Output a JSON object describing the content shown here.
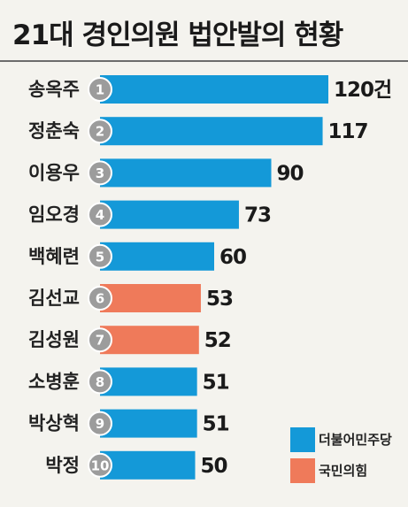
{
  "title": "21대 경인의원 법안발의 현황",
  "chart_data": {
    "type": "bar",
    "orientation": "horizontal",
    "title": "21대 경인의원 법안발의 현황",
    "unit": "건",
    "xlim": [
      0,
      120
    ],
    "grid": false,
    "legend_placement": "bottom-right",
    "categories": [
      "송옥주",
      "정춘숙",
      "이용우",
      "임오경",
      "백혜련",
      "김선교",
      "김성원",
      "소병훈",
      "박상혁",
      "박정"
    ],
    "ranks": [
      "1",
      "2",
      "3",
      "4",
      "5",
      "6",
      "7",
      "8",
      "9",
      "10"
    ],
    "values": [
      120,
      117,
      90,
      73,
      60,
      53,
      52,
      51,
      51,
      50
    ],
    "value_labels": [
      "120건",
      "117",
      "90",
      "73",
      "60",
      "53",
      "52",
      "51",
      "51",
      "50"
    ],
    "parties": [
      "더불어민주당",
      "더불어민주당",
      "더불어민주당",
      "더불어민주당",
      "더불어민주당",
      "국민의힘",
      "국민의힘",
      "더불어민주당",
      "더불어민주당",
      "더불어민주당"
    ],
    "legend": [
      {
        "name": "더불어민주당",
        "color": "#1499d8"
      },
      {
        "name": "국민의힘",
        "color": "#ef7a5a"
      }
    ]
  },
  "colors": {
    "background": "#f4f3ee",
    "rank_circle": "#9c9c9c",
    "rule": "#6c6c6c"
  }
}
